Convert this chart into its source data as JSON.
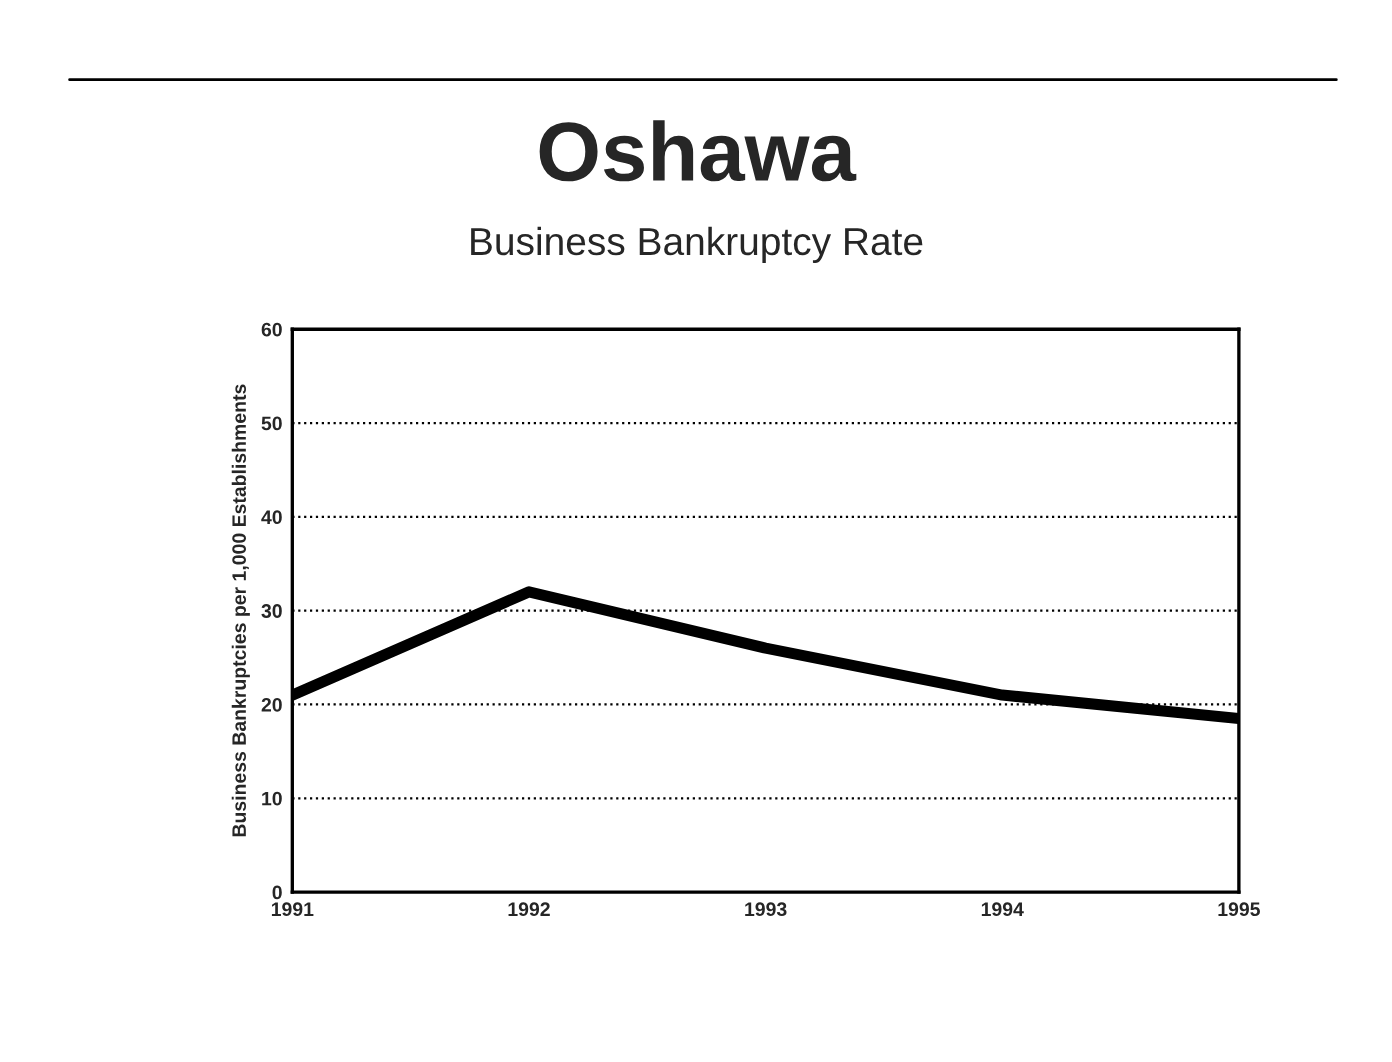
{
  "chart_data": {
    "type": "line",
    "title": "Oshawa",
    "subtitle": "Business Bankruptcy Rate",
    "ylabel": "Business Bankruptcies per 1,000 Establishments",
    "categories": [
      "1991",
      "1992",
      "1993",
      "1994",
      "1995"
    ],
    "series": [
      {
        "color": "#000000",
        "values": [
          21,
          32,
          26,
          21,
          18.5
        ]
      }
    ],
    "ylim": [
      0,
      60
    ],
    "yticks": [
      0,
      10,
      20,
      30,
      40,
      50,
      60
    ],
    "grid": "y",
    "line_style": "solid",
    "marker": "none"
  }
}
